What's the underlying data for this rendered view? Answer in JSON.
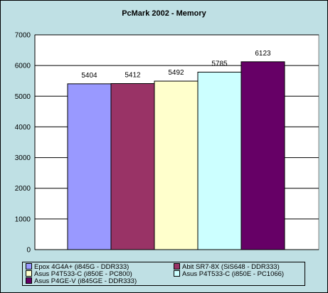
{
  "chart_data": {
    "type": "bar",
    "title": "PcMark 2002 - Memory",
    "xlabel": "",
    "ylabel": "",
    "ylim": [
      0,
      7000
    ],
    "yticks": [
      0,
      1000,
      2000,
      3000,
      4000,
      5000,
      6000,
      7000
    ],
    "grid": true,
    "legend": "bottom",
    "series": [
      {
        "name": "Epox 4G4A+ (i845G - DDR333)",
        "value": 5404,
        "color": "#9999ff"
      },
      {
        "name": "Abit SR7-8X (SiS648 - DDR333)",
        "value": 5412,
        "color": "#993366"
      },
      {
        "name": "Asus P4T533-C (i850E - PC800)",
        "value": 5492,
        "color": "#ffffcc"
      },
      {
        "name": "Asus P4T533-C (i850E - PC1066)",
        "value": 5785,
        "color": "#ccffff"
      },
      {
        "name": "Asus P4GE-V (i845GE - DDR333)",
        "value": 6123,
        "color": "#660066"
      }
    ]
  }
}
